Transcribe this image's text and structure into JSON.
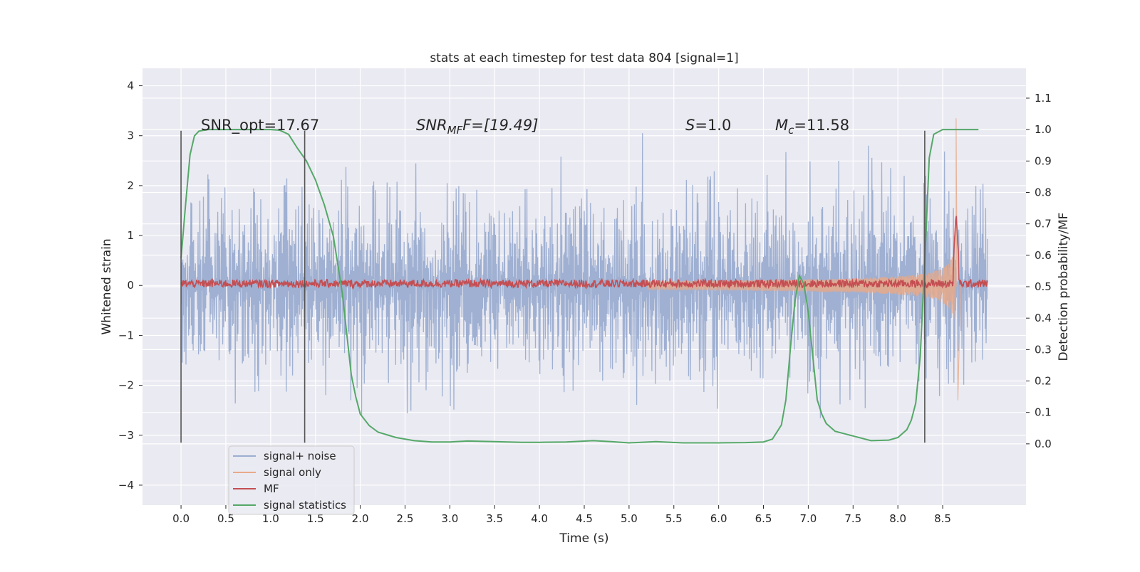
{
  "chart_data": {
    "type": "line",
    "title": "stats at each timestep for test data 804 [signal=1]",
    "xlabel": "Time (s)",
    "ylabel_left": "Whitened strain",
    "ylabel_right": "Detection probability/MF",
    "xlim": [
      -0.43,
      9.43
    ],
    "ylim_left": [
      -4.4,
      4.35
    ],
    "ylim_right": [
      -0.195,
      1.195
    ],
    "x_ticks": [
      "0.0",
      "0.5",
      "1.0",
      "1.5",
      "2.0",
      "2.5",
      "3.0",
      "3.5",
      "4.0",
      "4.5",
      "5.0",
      "5.5",
      "6.0",
      "6.5",
      "7.0",
      "7.5",
      "8.0",
      "8.5"
    ],
    "x_tick_values": [
      0,
      0.5,
      1,
      1.5,
      2,
      2.5,
      3,
      3.5,
      4,
      4.5,
      5,
      5.5,
      6,
      6.5,
      7,
      7.5,
      8,
      8.5
    ],
    "y_left_ticks": [
      "−4",
      "−3",
      "−2",
      "−1",
      "0",
      "1",
      "2",
      "3",
      "4"
    ],
    "y_left_tick_values": [
      -4,
      -3,
      -2,
      -1,
      0,
      1,
      2,
      3,
      4
    ],
    "y_right_ticks": [
      "0.0",
      "0.1",
      "0.2",
      "0.3",
      "0.4",
      "0.5",
      "0.6",
      "0.7",
      "0.8",
      "0.9",
      "1.0",
      "1.1"
    ],
    "y_right_tick_values": [
      0,
      0.1,
      0.2,
      0.3,
      0.4,
      0.5,
      0.6,
      0.7,
      0.8,
      0.9,
      1.0,
      1.1
    ],
    "grid": true,
    "legend_position": "lower-left",
    "series": [
      {
        "name": "signal+ noise",
        "color": "#9badd0",
        "axis": "left",
        "time_range": [
          0,
          9.0
        ],
        "amplitude": 1.3
      },
      {
        "name": "signal only",
        "color": "#e8a98a",
        "axis": "left",
        "time_range": [
          0,
          8.65
        ],
        "peak": 3.35,
        "peak_time": 8.65
      },
      {
        "name": "MF",
        "color": "#c44e52",
        "axis": "right",
        "baseline": 0.51,
        "peak": 0.735,
        "peak_time": 8.65
      },
      {
        "name": "signal statistics",
        "color": "#55a868",
        "axis": "right",
        "x": [
          0,
          0.05,
          0.1,
          0.15,
          0.2,
          0.3,
          0.5,
          0.8,
          1.0,
          1.1,
          1.2,
          1.3,
          1.4,
          1.5,
          1.6,
          1.7,
          1.8,
          1.85,
          1.9,
          1.95,
          2.0,
          2.1,
          2.2,
          2.4,
          2.6,
          2.8,
          3.0,
          3.2,
          3.5,
          3.8,
          4.0,
          4.3,
          4.6,
          4.8,
          5.0,
          5.3,
          5.6,
          6.0,
          6.3,
          6.5,
          6.6,
          6.7,
          6.75,
          6.8,
          6.85,
          6.9,
          6.95,
          7.0,
          7.05,
          7.1,
          7.15,
          7.2,
          7.3,
          7.5,
          7.7,
          7.9,
          8.0,
          8.1,
          8.15,
          8.2,
          8.25,
          8.3,
          8.35,
          8.4,
          8.5,
          8.7,
          8.9
        ],
        "y": [
          0.59,
          0.76,
          0.92,
          0.98,
          0.995,
          1.0,
          1.0,
          1.0,
          1.0,
          0.998,
          0.985,
          0.94,
          0.9,
          0.84,
          0.76,
          0.66,
          0.48,
          0.35,
          0.22,
          0.15,
          0.095,
          0.058,
          0.037,
          0.02,
          0.01,
          0.006,
          0.006,
          0.009,
          0.007,
          0.005,
          0.005,
          0.006,
          0.01,
          0.007,
          0.003,
          0.007,
          0.003,
          0.003,
          0.004,
          0.006,
          0.015,
          0.06,
          0.14,
          0.3,
          0.45,
          0.535,
          0.51,
          0.42,
          0.28,
          0.14,
          0.095,
          0.065,
          0.04,
          0.025,
          0.01,
          0.012,
          0.02,
          0.045,
          0.075,
          0.13,
          0.28,
          0.58,
          0.91,
          0.985,
          1.0,
          1.0,
          1.0
        ]
      }
    ],
    "vlines": [
      0.0,
      1.38,
      8.3
    ],
    "vline_range_left": [
      -3.15,
      3.1
    ],
    "annotations": {
      "snr_opt": "SNR_opt=17.67",
      "snr_mf_base": "SNR",
      "snr_mf_sub": "MF",
      "snr_mf_rest": "F=[19.49]",
      "s_sym": "S",
      "s_rest": "=1.0",
      "mc_sym": "M",
      "mc_sub": "c",
      "mc_rest": "=11.58"
    }
  }
}
